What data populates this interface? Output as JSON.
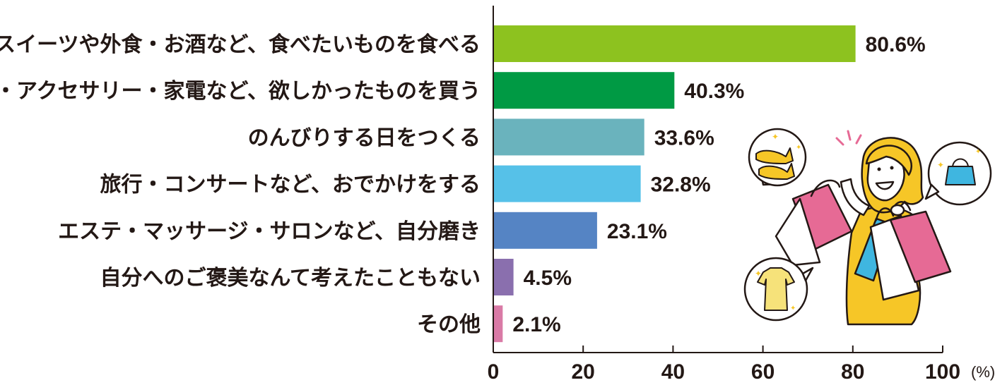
{
  "chart_data": {
    "type": "bar",
    "orientation": "horizontal",
    "categories": [
      "スイーツや外食・お酒など、食べたいものを食べる",
      "服・アクセサリー・家電など、欲しかったものを買う",
      "のんびりする日をつくる",
      "旅行・コンサートなど、おでかけをする",
      "エステ・マッサージ・サロンなど、自分磨き",
      "自分へのご褒美なんて考えたこともない",
      "その他"
    ],
    "values": [
      80.6,
      40.3,
      33.6,
      32.8,
      23.1,
      4.5,
      2.1
    ],
    "value_labels": [
      "80.6%",
      "40.3%",
      "33.6%",
      "32.8%",
      "23.1%",
      "4.5%",
      "2.1%"
    ],
    "bar_colors": [
      "#8dc21f",
      "#009a44",
      "#6ab3bd",
      "#56c1e8",
      "#5584c4",
      "#8a6fae",
      "#d97aa6"
    ],
    "xlim": [
      0,
      100
    ],
    "xticks": [
      0,
      20,
      40,
      60,
      80,
      100
    ],
    "xtick_labels": [
      "0",
      "20",
      "40",
      "60",
      "80",
      "100"
    ],
    "x_unit": "(%)",
    "grid": false,
    "legend": "none"
  },
  "illustration": {
    "subject": "woman-with-shopping-bags",
    "bubbles": [
      "shoes-icon",
      "handbag-icon",
      "blouse-icon"
    ],
    "colors": {
      "hair": "#f6c627",
      "dress": "#f6c627",
      "bag_pink": "#e66a95",
      "bag_blue": "#3fb6e0",
      "bag_white": "#ffffff",
      "outline": "#231815"
    }
  }
}
